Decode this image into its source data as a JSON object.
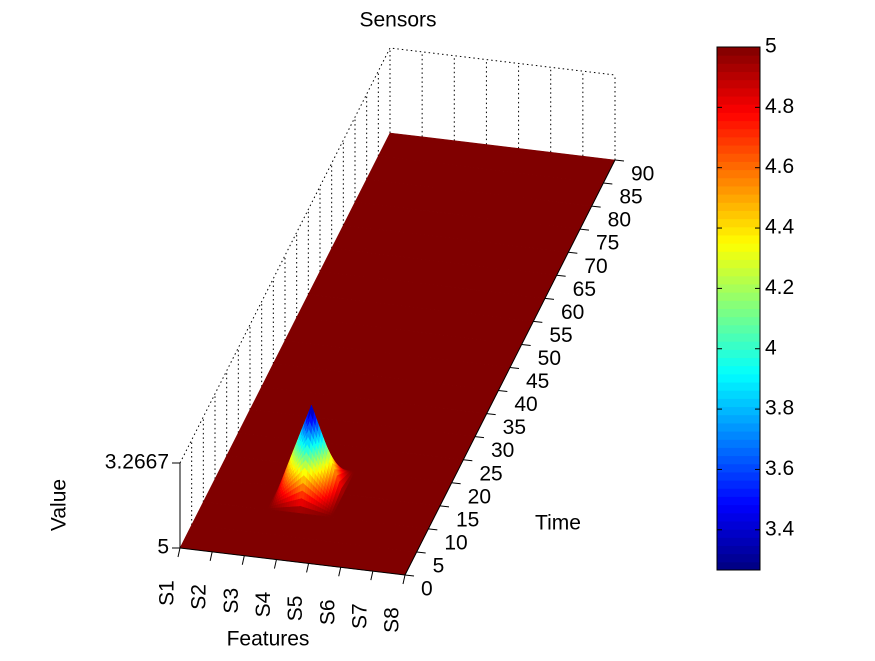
{
  "chart_data": {
    "type": "surface",
    "title": "Sensors",
    "xlabel": "Features",
    "ylabel": "Time",
    "zlabel": "Value",
    "categories": [
      "S1",
      "S2",
      "S3",
      "S4",
      "S5",
      "S6",
      "S7",
      "S8"
    ],
    "y": [
      0,
      5,
      10,
      15,
      20,
      25,
      30,
      35,
      40,
      45,
      50,
      55,
      60,
      65,
      70,
      75,
      80,
      85,
      90
    ],
    "z": [
      [
        5,
        5,
        5,
        5,
        5,
        5,
        5,
        5
      ],
      [
        5,
        5,
        5,
        5,
        5,
        5,
        5,
        5
      ],
      [
        5,
        5,
        5,
        5,
        5,
        5,
        5,
        5
      ],
      [
        5,
        5,
        5,
        3.2667,
        5,
        5,
        5,
        5
      ],
      [
        5,
        5,
        5,
        5,
        5,
        5,
        5,
        5
      ],
      [
        5,
        5,
        5,
        5,
        5,
        5,
        5,
        5
      ],
      [
        5,
        5,
        5,
        5,
        5,
        5,
        5,
        5
      ],
      [
        5,
        5,
        5,
        5,
        5,
        5,
        5,
        5
      ],
      [
        5,
        5,
        5,
        5,
        5,
        5,
        5,
        5
      ],
      [
        5,
        5,
        5,
        5,
        5,
        5,
        5,
        5
      ],
      [
        5,
        5,
        5,
        5,
        5,
        5,
        5,
        5
      ],
      [
        5,
        5,
        5,
        5,
        5,
        5,
        5,
        5
      ],
      [
        5,
        5,
        5,
        5,
        5,
        5,
        5,
        5
      ],
      [
        5,
        5,
        5,
        5,
        5,
        5,
        5,
        5
      ],
      [
        5,
        5,
        5,
        5,
        5,
        5,
        5,
        5
      ],
      [
        5,
        5,
        5,
        5,
        5,
        5,
        5,
        5
      ],
      [
        5,
        5,
        5,
        5,
        5,
        5,
        5,
        5
      ],
      [
        5,
        5,
        5,
        5,
        5,
        5,
        5,
        5
      ],
      [
        5,
        5,
        5,
        5,
        5,
        5,
        5,
        5
      ]
    ],
    "ylim": [
      0,
      90
    ],
    "yticks": [
      0,
      5,
      10,
      15,
      20,
      25,
      30,
      35,
      40,
      45,
      50,
      55,
      60,
      65,
      70,
      75,
      80,
      85,
      90
    ],
    "zlim": [
      3.2667,
      5
    ],
    "zticks": [
      3.2667,
      5
    ],
    "zdir": "reverse",
    "colormap": "jet",
    "clim": [
      3.2667,
      5
    ],
    "colorbar_ticks": [
      3.4,
      3.6,
      3.8,
      4,
      4.2,
      4.4,
      4.6,
      4.8,
      5
    ]
  }
}
